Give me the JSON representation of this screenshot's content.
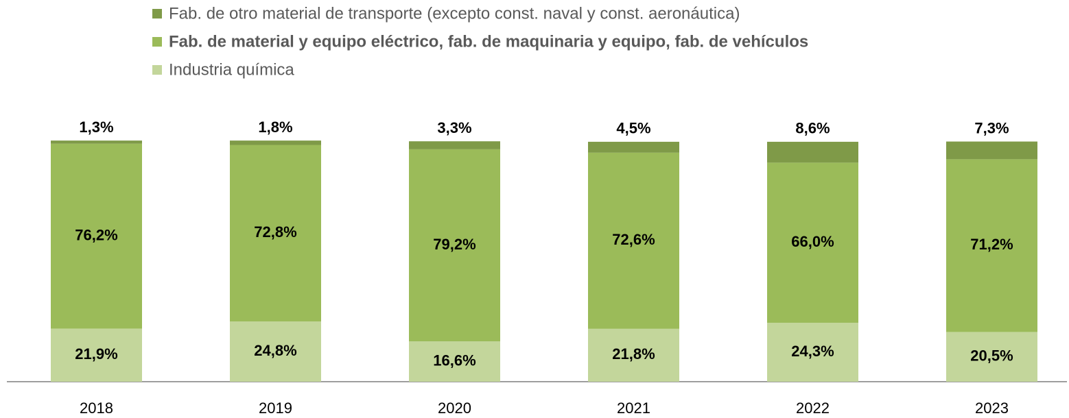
{
  "chart_data": {
    "type": "stacked_bar",
    "categories": [
      "2018",
      "2019",
      "2020",
      "2021",
      "2022",
      "2023"
    ],
    "series": [
      {
        "name": "Fab. de otro material de transporte (excepto const. naval y const. aeronáutica)",
        "color": "#7f9a48",
        "values": [
          1.3,
          1.8,
          3.3,
          4.5,
          8.6,
          7.3
        ],
        "value_labels": [
          "1,3%",
          "1,8%",
          "3,3%",
          "4,5%",
          "8,6%",
          "7,3%"
        ]
      },
      {
        "name": "Fab. de material y equipo eléctrico, fab. de maquinaria y equipo, fab. de vehículos",
        "color": "#9bbb59",
        "values": [
          76.2,
          72.8,
          79.2,
          72.6,
          66.0,
          71.2
        ],
        "value_labels": [
          "76,2%",
          "72,8%",
          "79,2%",
          "72,6%",
          "66,0%",
          "71,2%"
        ]
      },
      {
        "name": "Industria química",
        "color": "#c3d69b",
        "values": [
          21.9,
          24.8,
          16.6,
          21.8,
          24.3,
          20.5
        ],
        "value_labels": [
          "21,9%",
          "24,8%",
          "16,6%",
          "21,8%",
          "24,3%",
          "20,5%"
        ]
      }
    ],
    "ylim": [
      0,
      100
    ]
  }
}
